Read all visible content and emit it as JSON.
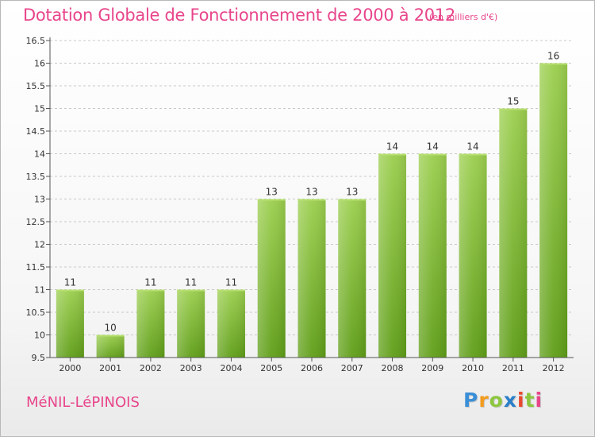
{
  "header": {
    "title": "Dotation Globale de Fonctionnement de 2000 à 2012",
    "subtitle": "(en milliers d'€)"
  },
  "footer": {
    "commune": "MéNIL-LéPINOIS",
    "brand": [
      "P",
      "r",
      "o",
      "x",
      "i",
      "t",
      "i"
    ]
  },
  "colors": {
    "title": "#e8458b",
    "bar_top": "#9ccf4f",
    "bar_bottom": "#5f9e18",
    "axis": "#555555",
    "grid": "#c8c8c8"
  },
  "chart_data": {
    "type": "bar",
    "title": "Dotation Globale de Fonctionnement de 2000 à 2012",
    "subtitle": "(en milliers d'€)",
    "xlabel": "",
    "ylabel": "",
    "categories": [
      "2000",
      "2001",
      "2002",
      "2003",
      "2004",
      "2005",
      "2006",
      "2007",
      "2008",
      "2009",
      "2010",
      "2011",
      "2012"
    ],
    "values": [
      11,
      10,
      11,
      11,
      11,
      13,
      13,
      13,
      14,
      14,
      14,
      15,
      16
    ],
    "value_labels": [
      "11",
      "10",
      "11",
      "11",
      "11",
      "13",
      "13",
      "13",
      "14",
      "14",
      "14",
      "15",
      "16"
    ],
    "ylim": [
      9.5,
      16.5
    ],
    "yticks": [
      9.5,
      10,
      10.5,
      11,
      11.5,
      12,
      12.5,
      13,
      13.5,
      14,
      14.5,
      15,
      15.5,
      16,
      16.5
    ],
    "ytick_labels": [
      "9.5",
      "10",
      "10.5",
      "11",
      "11.5",
      "12",
      "12.5",
      "13",
      "13.5",
      "14",
      "14.5",
      "15",
      "15.5",
      "16",
      "16.5"
    ],
    "grid": true,
    "legend": "none"
  }
}
